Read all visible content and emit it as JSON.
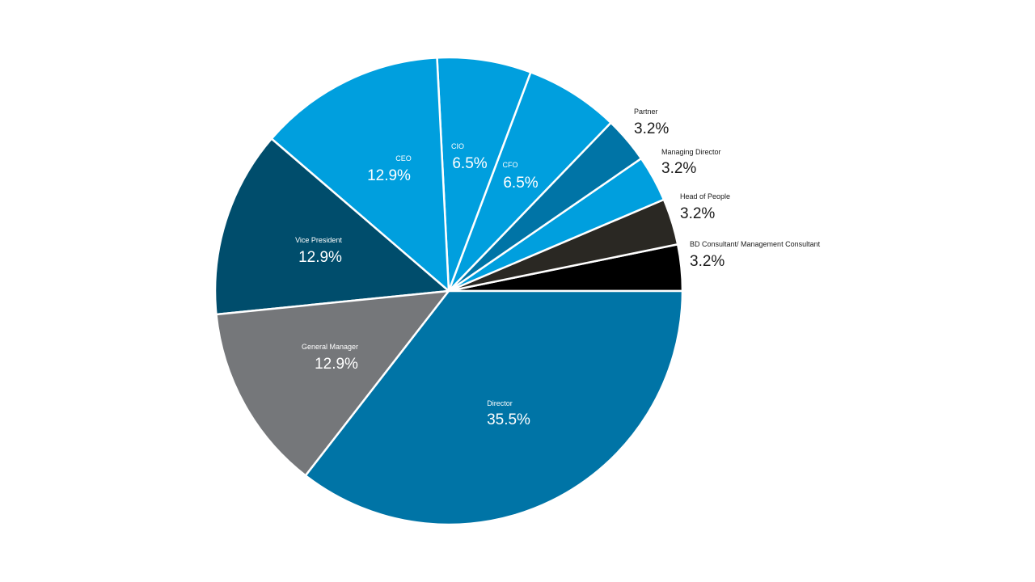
{
  "chart_data": {
    "type": "pie",
    "start_angle_deg": 0,
    "direction": "counterclockwise",
    "slices": [
      {
        "label": "BD Consultant/ Management Consultant",
        "value": 3.2,
        "display": "3.2%",
        "color": "#000000",
        "label_side": "outside"
      },
      {
        "label": "Head of People",
        "value": 3.2,
        "display": "3.2%",
        "color": "#2a2823",
        "label_side": "outside"
      },
      {
        "label": "Managing Director",
        "value": 3.2,
        "display": "3.2%",
        "color": "#009fde",
        "label_side": "outside"
      },
      {
        "label": "Partner",
        "value": 3.2,
        "display": "3.2%",
        "color": "#0074a6",
        "label_side": "outside"
      },
      {
        "label": "CFO",
        "value": 6.5,
        "display": "6.5%",
        "color": "#009fde",
        "label_side": "inside"
      },
      {
        "label": "CIO",
        "value": 6.5,
        "display": "6.5%",
        "color": "#009fde",
        "label_side": "inside"
      },
      {
        "label": "CEO",
        "value": 12.9,
        "display": "12.9%",
        "color": "#009fde",
        "label_side": "inside"
      },
      {
        "label": "Vice President",
        "value": 12.9,
        "display": "12.9%",
        "color": "#004d6c",
        "label_side": "inside"
      },
      {
        "label": "General Manager",
        "value": 12.9,
        "display": "12.9%",
        "color": "#75777a",
        "label_side": "inside"
      },
      {
        "label": "Director",
        "value": 35.5,
        "display": "35.5%",
        "color": "#0074a6",
        "label_side": "inside"
      }
    ]
  }
}
